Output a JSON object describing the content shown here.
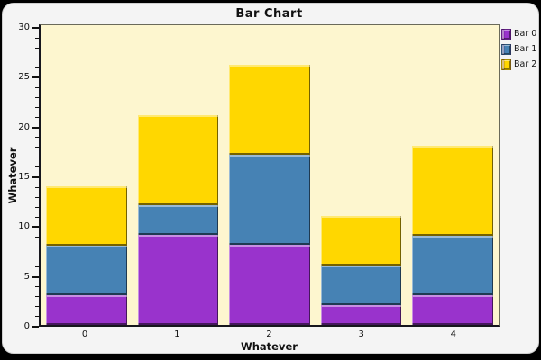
{
  "window": {
    "background": "#000000",
    "panel_background": "#f4f4f4"
  },
  "chart_data": {
    "type": "bar",
    "stacked": true,
    "title": "Bar Chart",
    "xlabel": "Whatever",
    "ylabel": "Whatever",
    "categories": [
      "0",
      "1",
      "2",
      "3",
      "4"
    ],
    "series": [
      {
        "name": "Bar 0",
        "color": "#9933CC",
        "values": [
          3,
          9,
          8,
          2,
          3
        ]
      },
      {
        "name": "Bar 1",
        "color": "#4682B4",
        "values": [
          5,
          3,
          9,
          4,
          6
        ]
      },
      {
        "name": "Bar 2",
        "color": "#FFD700",
        "values": [
          6,
          9,
          9,
          5,
          9
        ]
      }
    ],
    "stack_totals": [
      14,
      21,
      26,
      11,
      18
    ],
    "ylim": [
      0,
      30
    ],
    "y_tick_labels": [
      "0",
      "5",
      "10",
      "15",
      "20",
      "25",
      "30"
    ],
    "y_major_step": 5,
    "y_minor_step": 1,
    "grid": false,
    "legend_position": "top-right",
    "plot_bg": "#FDF6CF"
  }
}
